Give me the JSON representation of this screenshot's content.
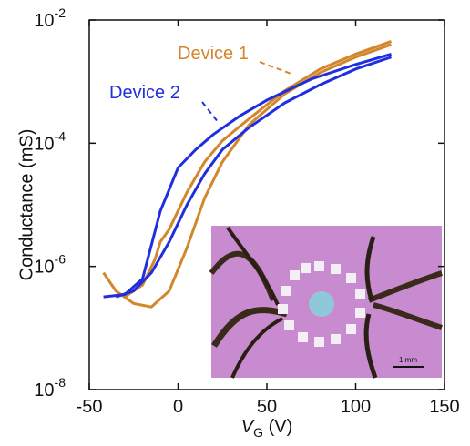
{
  "chart_data": {
    "type": "line",
    "log_y": true,
    "ylabel": "Conductance (mS)",
    "xlabel": "V",
    "xlabel_subscript": "G",
    "xlabel_unit": "(V)",
    "xlim": [
      -50,
      150
    ],
    "xticks": [
      -50,
      0,
      50,
      100,
      150
    ],
    "ylim": [
      1e-08,
      0.01
    ],
    "yticks": [
      {
        "value": 1e-08,
        "label": "10",
        "exponent": "-8"
      },
      {
        "value": 1e-06,
        "label": "10",
        "exponent": "-6"
      },
      {
        "value": 0.0001,
        "label": "10",
        "exponent": "-4"
      },
      {
        "value": 0.01,
        "label": "10",
        "exponent": "-2"
      }
    ],
    "series": [
      {
        "name": "Device 1",
        "color": "#d4862a",
        "sweeps": [
          {
            "x": [
              -42,
              -35,
              -25,
              -15,
              -5,
              5,
              15,
              25,
              40,
              60,
              80,
              100,
              120
            ],
            "values": [
              7.9e-07,
              4e-07,
              2.5e-07,
              2.2e-07,
              4e-07,
              2e-06,
              1.3e-05,
              5e-05,
              0.0002,
              0.00063,
              0.0014,
              0.0025,
              0.004
            ]
          },
          {
            "x": [
              -30,
              -20,
              -13,
              -10,
              -5,
              5,
              15,
              25,
              40,
              60,
              80,
              100,
              120
            ],
            "values": [
              3.2e-07,
              5e-07,
              1.3e-06,
              2.5e-06,
              4e-06,
              1.6e-05,
              5e-05,
              0.00011,
              0.00025,
              0.00071,
              0.0016,
              0.0028,
              0.0045
            ]
          }
        ]
      },
      {
        "name": "Device 2",
        "color": "#1f2fe0",
        "sweeps": [
          {
            "x": [
              -42,
              -30,
              -20,
              -10,
              0,
              10,
              20,
              35,
              50,
              75,
              100,
              120
            ],
            "values": [
              3.2e-07,
              3.5e-07,
              6.3e-07,
              7.9e-06,
              4e-05,
              7.9e-05,
              0.00014,
              0.00028,
              0.0005,
              0.0011,
              0.0019,
              0.0028
            ]
          },
          {
            "x": [
              -35,
              -25,
              -15,
              -5,
              5,
              15,
              25,
              40,
              60,
              80,
              100,
              120
            ],
            "values": [
              3.2e-07,
              4e-07,
              7.9e-07,
              2.5e-06,
              1e-05,
              3.2e-05,
              7.9e-05,
              0.00018,
              0.00045,
              0.00089,
              0.0016,
              0.0025
            ]
          }
        ]
      }
    ],
    "inset_scale_label": "1 mm"
  }
}
